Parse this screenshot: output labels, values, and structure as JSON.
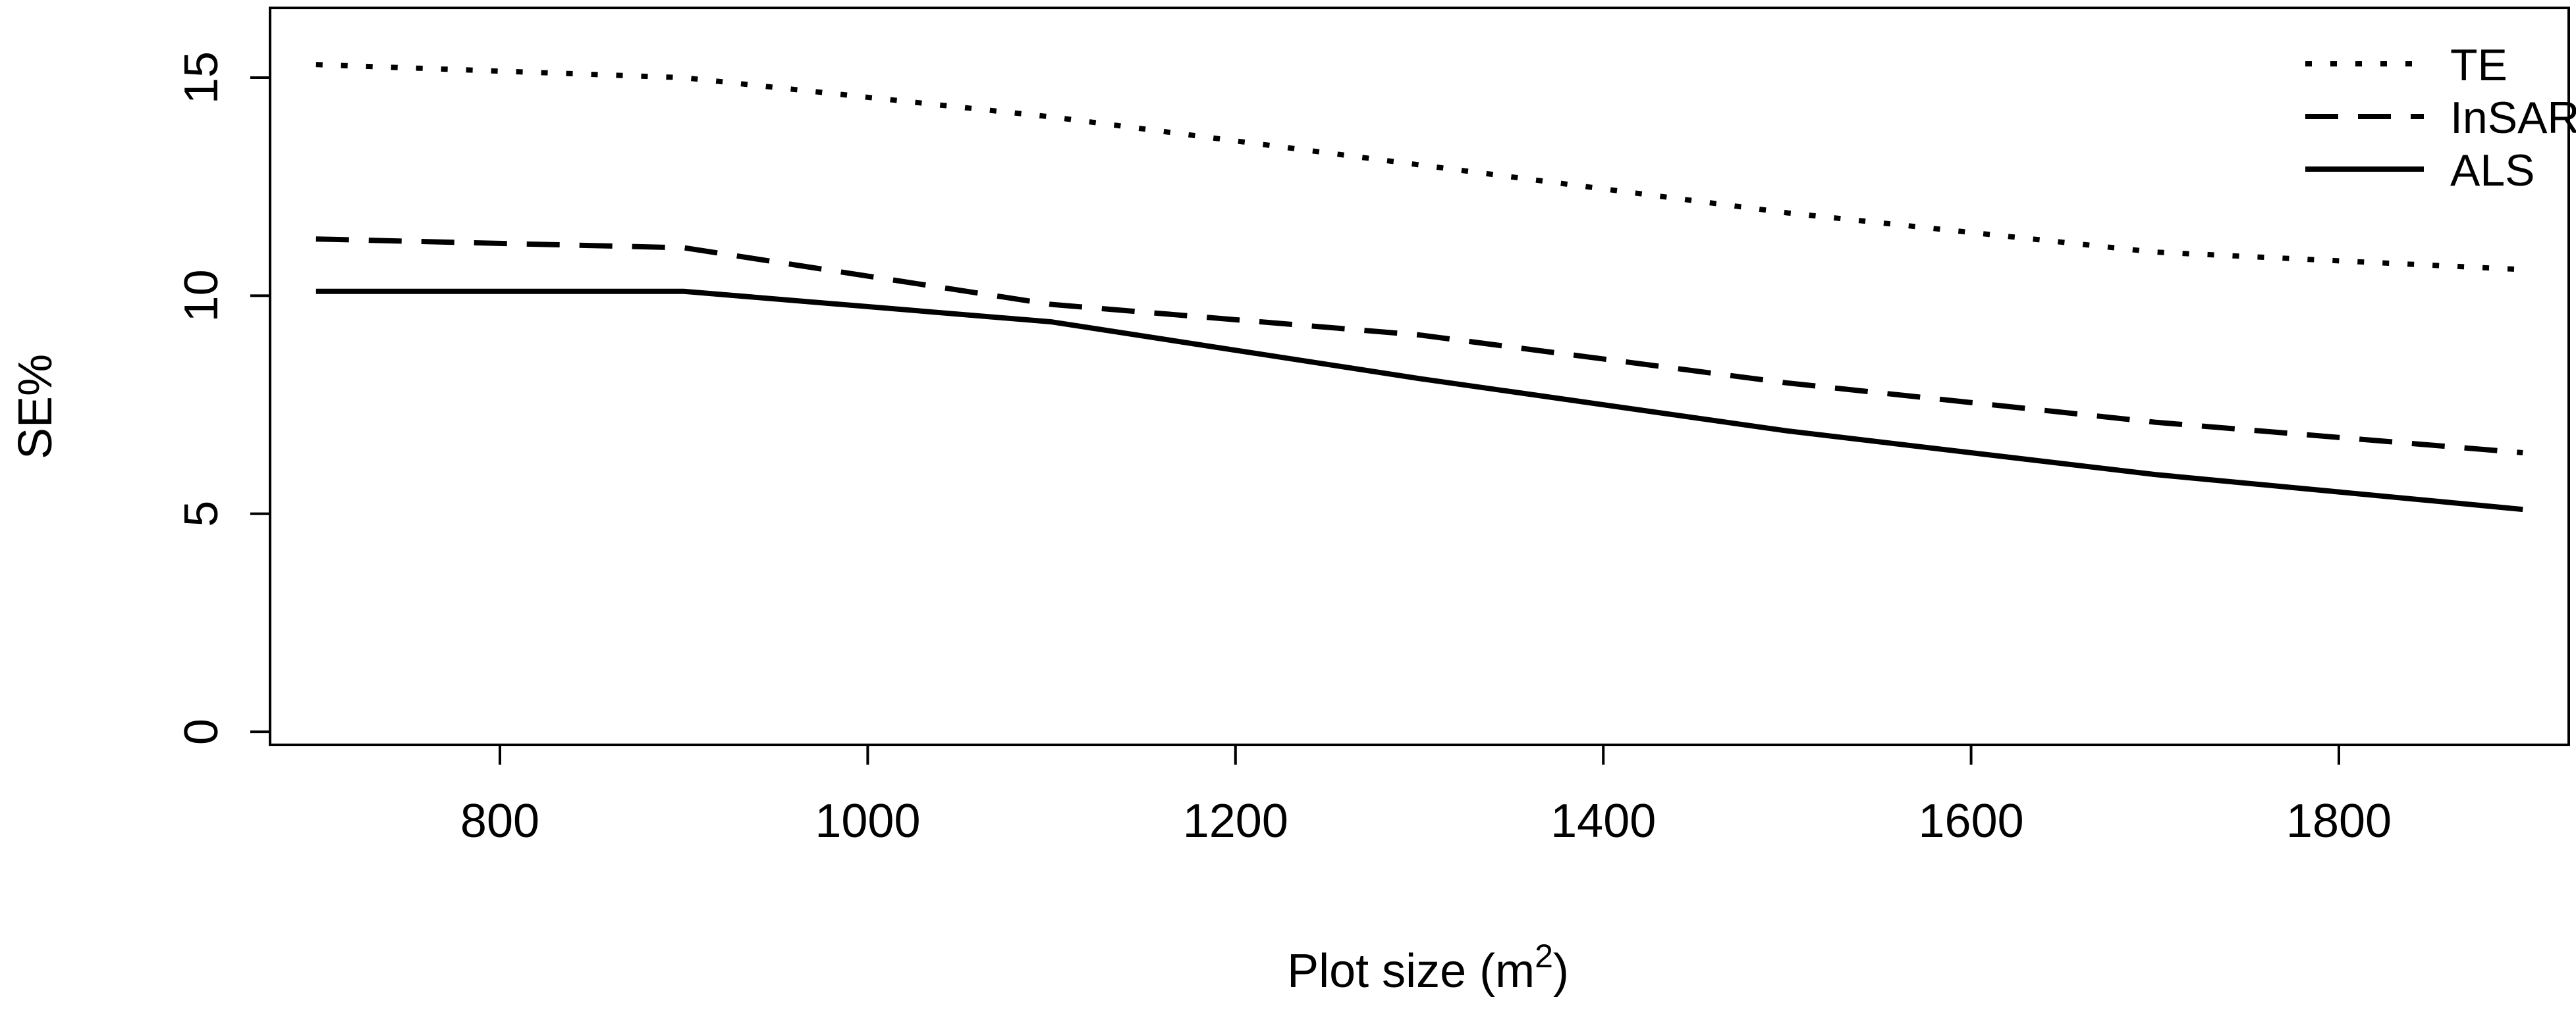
{
  "chart_data": {
    "type": "line",
    "title": "",
    "xlabel": "Plot size (m",
    "xlabel_sup": "2",
    "xlabel_close": ")",
    "ylabel": "SE%",
    "xlim": [
      675,
      1925
    ],
    "ylim": [
      -0.3,
      16.6
    ],
    "x_ticks": [
      800,
      1000,
      1200,
      1400,
      1600,
      1800
    ],
    "x_tick_labels": [
      "800",
      "1000",
      "1200",
      "1400",
      "1600",
      "1800"
    ],
    "y_ticks": [
      0,
      5,
      10,
      15
    ],
    "y_tick_labels": [
      "0",
      "5",
      "10",
      "15"
    ],
    "grid": false,
    "legend_position": "top-right",
    "x": [
      700,
      900,
      1100,
      1300,
      1500,
      1700,
      1900
    ],
    "series": [
      {
        "name": "TE",
        "line_style": "dotted",
        "values": [
          15.3,
          15.0,
          14.1,
          13.0,
          11.9,
          11.0,
          10.6
        ]
      },
      {
        "name": "InSAR",
        "line_style": "dashed",
        "values": [
          11.3,
          11.1,
          9.8,
          9.1,
          8.0,
          7.1,
          6.4
        ]
      },
      {
        "name": "ALS",
        "line_style": "solid",
        "values": [
          10.1,
          10.1,
          9.4,
          8.1,
          6.9,
          5.9,
          5.1
        ]
      }
    ],
    "colors": {
      "line": "#000000",
      "axis": "#000000",
      "background": "#ffffff"
    }
  }
}
